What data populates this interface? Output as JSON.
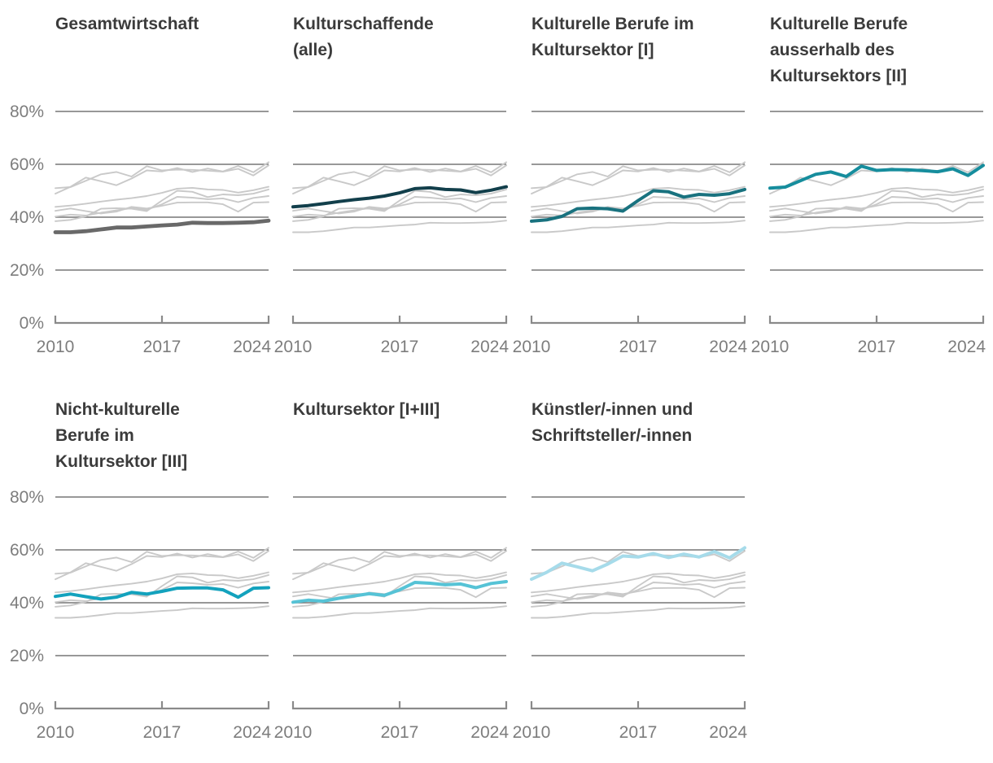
{
  "page": {
    "background": "#ffffff"
  },
  "chart_data": {
    "type": "line",
    "layout": "small-multiples",
    "description": "Seven small-multiple line charts; each panel highlights one series in color while all other series are drawn in light gray for context.",
    "x": [
      2010,
      2011,
      2012,
      2013,
      2014,
      2015,
      2016,
      2017,
      2018,
      2019,
      2020,
      2021,
      2022,
      2023,
      2024
    ],
    "x_ticks": [
      2010,
      2017,
      2024
    ],
    "ylim": [
      0,
      80
    ],
    "y_ticks": [
      {
        "value": 80,
        "label": "80%"
      },
      {
        "value": 60,
        "label": "60%"
      },
      {
        "value": 40,
        "label": "40%"
      },
      {
        "value": 20,
        "label": "20%"
      },
      {
        "value": 0,
        "label": "0%"
      }
    ],
    "grid": true,
    "legend": "none",
    "series": [
      {
        "name": "Gesamtwirtschaft",
        "color": "#696969",
        "highlight_width": 4.8,
        "values": [
          34.3,
          34.3,
          34.7,
          35.4,
          36.1,
          36.1,
          36.5,
          36.9,
          37.2,
          37.9,
          37.8,
          37.8,
          37.9,
          38.1,
          38.7
        ]
      },
      {
        "name": "Kulturschaffende (alle)",
        "color": "#123f4b",
        "highlight_width": 4,
        "values": [
          43.9,
          44.4,
          45.1,
          45.9,
          46.6,
          47.2,
          48.0,
          49.2,
          50.8,
          51.1,
          50.5,
          50.3,
          49.3,
          50.2,
          51.5
        ]
      },
      {
        "name": "Kulturelle Berufe im Kultursektor [I]",
        "color": "#19727f",
        "highlight_width": 4,
        "values": [
          38.5,
          39.0,
          40.3,
          43.2,
          43.4,
          43.2,
          42.3,
          46.3,
          50.0,
          49.6,
          47.6,
          48.6,
          48.3,
          48.9,
          50.5
        ]
      },
      {
        "name": "Kulturelle Berufe ausserhalb des Kultursektors [II]",
        "color": "#168d9d",
        "highlight_width": 4,
        "values": [
          51.0,
          51.4,
          53.8,
          56.2,
          57.1,
          55.4,
          59.3,
          57.7,
          58.0,
          57.9,
          57.6,
          57.2,
          58.3,
          55.8,
          59.6
        ]
      },
      {
        "name": "Nicht-kulturelle Berufe im Kultursektor [III]",
        "color": "#13a2bd",
        "highlight_width": 4,
        "values": [
          42.4,
          43.3,
          42.3,
          41.4,
          42.1,
          43.9,
          43.3,
          44.3,
          45.5,
          45.6,
          45.6,
          44.9,
          42.1,
          45.5,
          45.7
        ]
      },
      {
        "name": "Kultursektor [I+III]",
        "color": "#56c3d6",
        "highlight_width": 4,
        "values": [
          40.2,
          41.0,
          40.6,
          41.7,
          42.6,
          43.4,
          42.8,
          44.9,
          47.7,
          47.4,
          46.8,
          47.1,
          45.7,
          47.3,
          48.0
        ]
      },
      {
        "name": "Künstler/-innen und Schriftsteller/-innen",
        "color": "#a6dbea",
        "highlight_width": 4,
        "values": [
          48.9,
          51.5,
          55.0,
          53.6,
          52.1,
          54.6,
          57.7,
          57.3,
          58.6,
          57.1,
          58.4,
          57.3,
          59.4,
          57.0,
          60.8
        ]
      }
    ],
    "panels": [
      {
        "title": "Gesamtwirtschaft",
        "series_index": 0,
        "show_y_axis": true
      },
      {
        "title": "Kulturschaffende\n(alle)",
        "series_index": 1,
        "show_y_axis": false
      },
      {
        "title": "Kulturelle Berufe im\nKultursektor [I]",
        "series_index": 2,
        "show_y_axis": false
      },
      {
        "title": "Kulturelle Berufe\nausserhalb des\nKultursektors [II]",
        "series_index": 3,
        "show_y_axis": false
      },
      {
        "title": "Nicht-kulturelle\nBerufe im\nKultursektor [III]",
        "series_index": 4,
        "show_y_axis": true
      },
      {
        "title": "Kultursektor [I+III]",
        "series_index": 5,
        "show_y_axis": false
      },
      {
        "title": "Künstler/-innen und\nSchriftsteller/-innen",
        "series_index": 6,
        "show_y_axis": false
      }
    ],
    "styles": {
      "background_series_color": "#c9c9c9",
      "gridline_color": "#767676",
      "axis_color": "#8a8a8a",
      "tick_label_color": "#7d7d7d",
      "title_color": "#3b3b3b"
    }
  }
}
